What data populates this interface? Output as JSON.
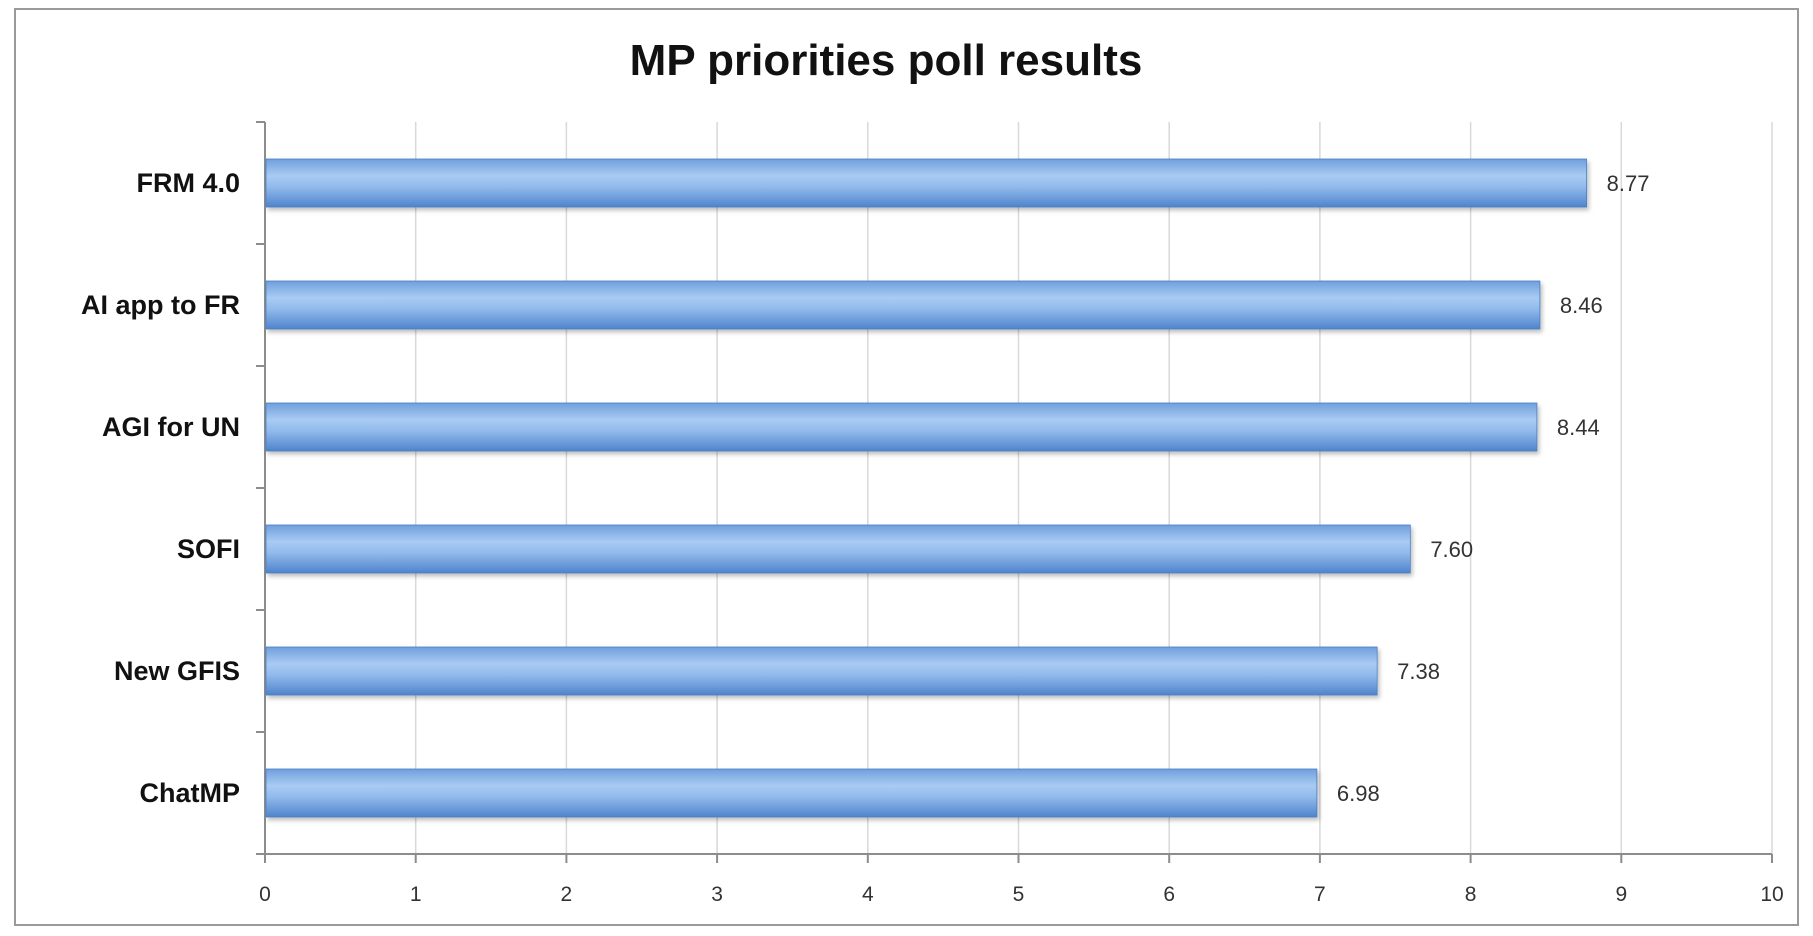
{
  "chart_data": {
    "type": "bar",
    "orientation": "horizontal",
    "title": "MP priorities poll results",
    "xlabel": "",
    "ylabel": "",
    "categories": [
      "FRM 4.0",
      "AI app to FR",
      "AGI for UN",
      "SOFI",
      "New GFIS",
      "ChatMP"
    ],
    "values": [
      8.77,
      8.46,
      8.44,
      7.6,
      7.38,
      6.98
    ],
    "data_labels": [
      "8.77",
      "8.46",
      "8.44",
      "7.60",
      "7.38",
      "6.98"
    ],
    "xlim": [
      0,
      10
    ],
    "x_ticks": [
      "0",
      "1",
      "2",
      "3",
      "4",
      "5",
      "6",
      "7",
      "8",
      "9",
      "10"
    ],
    "grid": "vertical",
    "legend": "none",
    "colors": {
      "bar_light": "#c6dcf6",
      "bar_mid": "#8fb8ea",
      "bar_dark": "#5b8fd4",
      "grid": "#d9d9d9",
      "axis": "#8c8c8c"
    }
  }
}
